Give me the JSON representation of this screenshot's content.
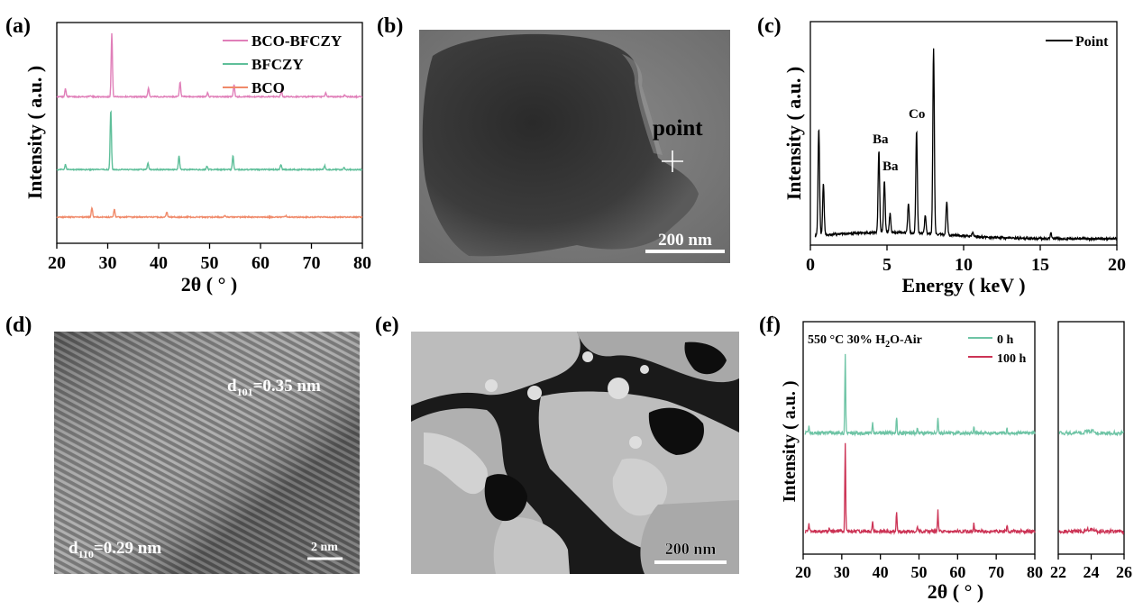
{
  "panels": {
    "a": {
      "label": "(a)"
    },
    "b": {
      "label": "(b)",
      "annotation": "point",
      "scalebar": "200 nm"
    },
    "c": {
      "label": "(c)"
    },
    "d": {
      "label": "(d)",
      "annotation_1_main": "d",
      "annotation_1_sub": "101",
      "annotation_1_rest": "=0.35 nm",
      "annotation_2_main": "d",
      "annotation_2_sub": "110",
      "annotation_2_rest": "=0.29 nm",
      "scalebar": "2 nm"
    },
    "e": {
      "label": "(e)",
      "scalebar": "200 nm"
    },
    "f": {
      "label": "(f)",
      "condition_pre": "550 °C 30% H",
      "condition_sub": "2",
      "condition_post": "O-Air"
    }
  },
  "chart_data": [
    {
      "id": "a",
      "type": "line",
      "xlabel": "2θ ( ° )",
      "ylabel": "Intensity ( a.u. )",
      "xlim": [
        20,
        80
      ],
      "xticks": [
        20,
        30,
        40,
        50,
        60,
        70,
        80
      ],
      "legend_position": "top-right",
      "series": [
        {
          "name": "BCO-BFCZY",
          "color": "#e07fb9",
          "offset": 2.1,
          "peaks": [
            [
              21.7,
              0.13
            ],
            [
              26.5,
              0.02
            ],
            [
              30.8,
              1.0
            ],
            [
              38.0,
              0.14
            ],
            [
              44.2,
              0.23
            ],
            [
              49.6,
              0.06
            ],
            [
              54.8,
              0.2
            ],
            [
              64.1,
              0.09
            ],
            [
              72.8,
              0.06
            ],
            [
              76.5,
              0.03
            ]
          ]
        },
        {
          "name": "BFCZY",
          "color": "#5fbf9a",
          "offset": 0.95,
          "peaks": [
            [
              21.7,
              0.08
            ],
            [
              30.6,
              0.95
            ],
            [
              37.9,
              0.11
            ],
            [
              44.0,
              0.22
            ],
            [
              49.5,
              0.05
            ],
            [
              54.6,
              0.22
            ],
            [
              64.0,
              0.08
            ],
            [
              72.6,
              0.06
            ],
            [
              76.4,
              0.04
            ]
          ]
        },
        {
          "name": "BCO",
          "color": "#f08a6a",
          "offset": 0.2,
          "peaks": [
            [
              26.9,
              0.15
            ],
            [
              31.3,
              0.12
            ],
            [
              41.6,
              0.08
            ],
            [
              53.0,
              0.03
            ],
            [
              65.0,
              0.02
            ]
          ]
        }
      ]
    },
    {
      "id": "c",
      "type": "line",
      "xlabel": "Energy ( keV )",
      "ylabel": "Intensity ( a.u. )",
      "xlim": [
        0,
        20
      ],
      "xticks": [
        0,
        5,
        10,
        15,
        20
      ],
      "legend_position": "top-right",
      "series": [
        {
          "name": "Point",
          "color": "#000000",
          "peaks": [
            [
              0.55,
              0.58
            ],
            [
              0.85,
              0.28
            ],
            [
              4.47,
              0.44
            ],
            [
              4.83,
              0.28
            ],
            [
              5.2,
              0.1
            ],
            [
              6.4,
              0.16
            ],
            [
              6.93,
              0.55
            ],
            [
              7.5,
              0.1
            ],
            [
              8.04,
              1.0
            ],
            [
              8.9,
              0.18
            ],
            [
              10.6,
              0.02
            ],
            [
              15.7,
              0.03
            ]
          ]
        }
      ],
      "peak_labels": [
        {
          "text": "Ba",
          "x": 4.47
        },
        {
          "text": "Ba",
          "x": 4.83
        },
        {
          "text": "Co",
          "x": 6.93
        }
      ]
    },
    {
      "id": "f",
      "type": "line",
      "xlabel": "2θ ( ° )",
      "ylabel": "Intensity ( a.u. )",
      "xlim": [
        20,
        80
      ],
      "xticks": [
        20,
        30,
        40,
        50,
        60,
        70,
        80
      ],
      "xlim_inset": [
        22,
        26
      ],
      "xticks_inset": [
        22,
        24,
        26
      ],
      "legend_position": "top-right",
      "series": [
        {
          "name": "0 h",
          "color": "#6ec4a5",
          "offset": 1.1,
          "peaks": [
            [
              21.5,
              0.07
            ],
            [
              26.8,
              0.03
            ],
            [
              30.9,
              0.85
            ],
            [
              38.0,
              0.1
            ],
            [
              44.2,
              0.17
            ],
            [
              49.6,
              0.05
            ],
            [
              54.9,
              0.16
            ],
            [
              64.2,
              0.08
            ],
            [
              72.8,
              0.05
            ]
          ]
        },
        {
          "name": "100 h",
          "color": "#cc3355",
          "offset": 0.05,
          "peaks": [
            [
              21.5,
              0.08
            ],
            [
              26.8,
              0.04
            ],
            [
              30.9,
              0.95
            ],
            [
              38.0,
              0.1
            ],
            [
              44.2,
              0.22
            ],
            [
              49.6,
              0.05
            ],
            [
              54.9,
              0.22
            ],
            [
              64.2,
              0.09
            ],
            [
              72.8,
              0.06
            ]
          ]
        }
      ]
    }
  ]
}
